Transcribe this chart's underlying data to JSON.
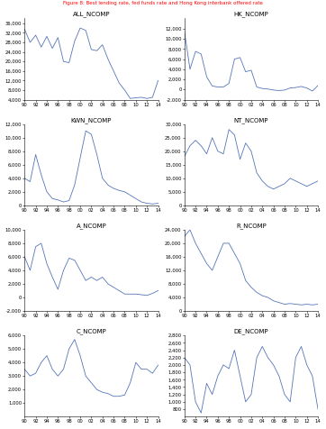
{
  "title": "Figure 8: Best lending rate, fed funds rate and Hong Kong interbank offered rate",
  "line_color": "#5575B8",
  "background_color": "#ffffff",
  "title_fontsize": 4.0,
  "subplot_title_fontsize": 5.0,
  "tick_fontsize": 3.8,
  "subplots": [
    {
      "title": "ALL_NCOMP",
      "ylim": [
        4000,
        38000
      ],
      "yticks": [
        4000,
        8000,
        12000,
        16000,
        20000,
        24000,
        28000,
        32000,
        36000
      ],
      "data": [
        33500,
        28000,
        31000,
        26000,
        30500,
        25500,
        30000,
        20000,
        19500,
        28500,
        34000,
        33000,
        25000,
        24500,
        27000,
        21000,
        16000,
        11000,
        8000,
        4500,
        4800,
        5000,
        4500,
        5000,
        12000
      ]
    },
    {
      "title": "HK_NCOMP",
      "ylim": [
        -2000,
        14000
      ],
      "yticks": [
        -2000,
        0,
        2000,
        4000,
        6000,
        8000,
        10000,
        12000
      ],
      "data": [
        11500,
        4000,
        7500,
        7000,
        2500,
        700,
        500,
        500,
        1200,
        6000,
        6300,
        3500,
        3800,
        500,
        200,
        100,
        -100,
        -200,
        -100,
        300,
        400,
        600,
        300,
        -300,
        800
      ]
    },
    {
      "title": "KWN_NCOMP",
      "ylim": [
        0,
        12000
      ],
      "yticks": [
        0,
        2000,
        4000,
        6000,
        8000,
        10000,
        12000
      ],
      "data": [
        4000,
        3500,
        7500,
        4500,
        2000,
        1000,
        800,
        500,
        700,
        3000,
        7000,
        11000,
        10500,
        7500,
        4000,
        3000,
        2500,
        2200,
        2000,
        1500,
        1000,
        500,
        300,
        200,
        300
      ]
    },
    {
      "title": "NT_NCOMP",
      "ylim": [
        0,
        30000
      ],
      "yticks": [
        0,
        5000,
        10000,
        15000,
        20000,
        25000,
        30000
      ],
      "data": [
        18000,
        22000,
        24000,
        22000,
        19000,
        25000,
        20000,
        19000,
        28000,
        26000,
        17000,
        23000,
        20000,
        12000,
        9000,
        7000,
        6000,
        7000,
        8000,
        10000,
        9000,
        8000,
        7000,
        8000,
        9000
      ]
    },
    {
      "title": "A_NCOMP",
      "ylim": [
        -2000,
        10000
      ],
      "yticks": [
        -2000,
        0,
        2000,
        4000,
        6000,
        8000,
        10000
      ],
      "data": [
        6000,
        4000,
        7500,
        8000,
        5000,
        3000,
        1200,
        4000,
        5800,
        5500,
        4000,
        2500,
        3000,
        2500,
        3000,
        2000,
        1500,
        1000,
        500,
        500,
        500,
        400,
        300,
        600,
        1000
      ]
    },
    {
      "title": "R_NCOMP",
      "ylim": [
        0,
        24000
      ],
      "yticks": [
        0,
        4000,
        8000,
        12000,
        16000,
        20000,
        24000
      ],
      "data": [
        22000,
        24000,
        20000,
        17000,
        14000,
        12000,
        16000,
        20000,
        20000,
        17000,
        14000,
        9000,
        7000,
        5500,
        4500,
        4000,
        3000,
        2500,
        2000,
        2200,
        2000,
        1800,
        2000,
        1800,
        2000
      ]
    },
    {
      "title": "C_NCOMP",
      "ylim": [
        0,
        6000
      ],
      "yticks": [
        1000,
        2000,
        3000,
        4000,
        5000,
        6000
      ],
      "data": [
        3500,
        3000,
        3200,
        4000,
        4500,
        3500,
        3000,
        3500,
        5000,
        5700,
        4500,
        3000,
        2500,
        2000,
        1800,
        1700,
        1500,
        1500,
        1600,
        2500,
        4000,
        3500,
        3500,
        3200,
        3800
      ]
    },
    {
      "title": "DE_NCOMP",
      "ylim": [
        600,
        2800
      ],
      "yticks": [
        800,
        1000,
        1200,
        1400,
        1600,
        1800,
        2000,
        2200,
        2400,
        2600,
        2800
      ],
      "data": [
        2200,
        2000,
        1000,
        700,
        1500,
        1200,
        1700,
        2000,
        1900,
        2400,
        1700,
        1000,
        1200,
        2200,
        2500,
        2200,
        2000,
        1700,
        1200,
        1000,
        2200,
        2500,
        2000,
        1700,
        800
      ]
    }
  ],
  "x_ticks": [
    "90",
    "92",
    "94",
    "96",
    "98",
    "00",
    "02",
    "04",
    "06",
    "08",
    "10",
    "12",
    "14"
  ]
}
